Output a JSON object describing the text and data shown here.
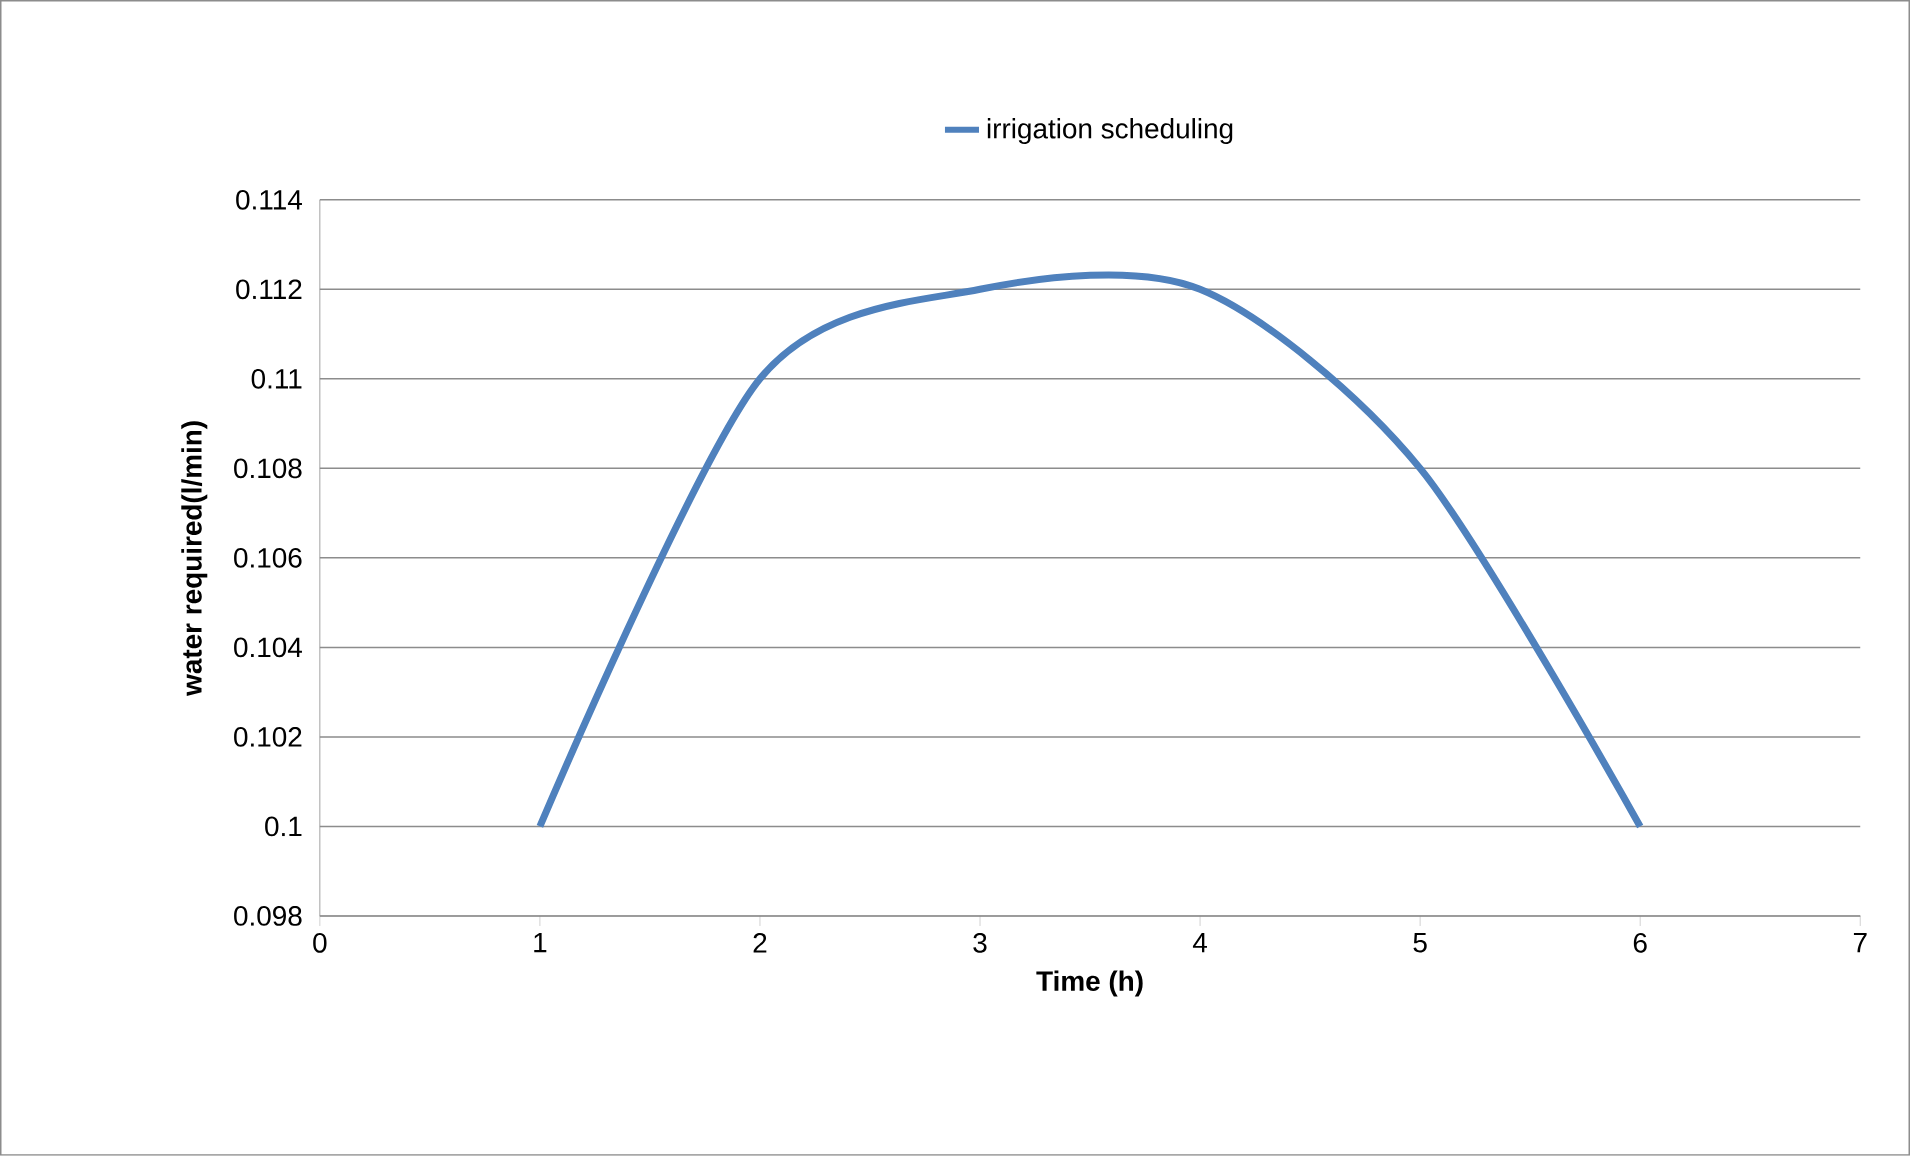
{
  "chart_data": {
    "type": "line",
    "xlabel": "Time (h)",
    "ylabel": "water required(l/min)",
    "x": [
      1,
      2,
      3,
      4,
      5,
      6
    ],
    "series": [
      {
        "name": "irrigation scheduling",
        "color": "#4f81bd",
        "values": [
          0.1,
          0.11,
          0.112,
          0.112,
          0.108,
          0.1
        ]
      }
    ],
    "xlim": [
      0,
      7
    ],
    "xticks": [
      0,
      1,
      2,
      3,
      4,
      5,
      6,
      7
    ],
    "ylim": [
      0.098,
      0.114
    ],
    "yticks": [
      0.098,
      0.1,
      0.102,
      0.104,
      0.106,
      0.108,
      0.11,
      0.112,
      0.114
    ],
    "grid": "y",
    "legend": "top"
  }
}
